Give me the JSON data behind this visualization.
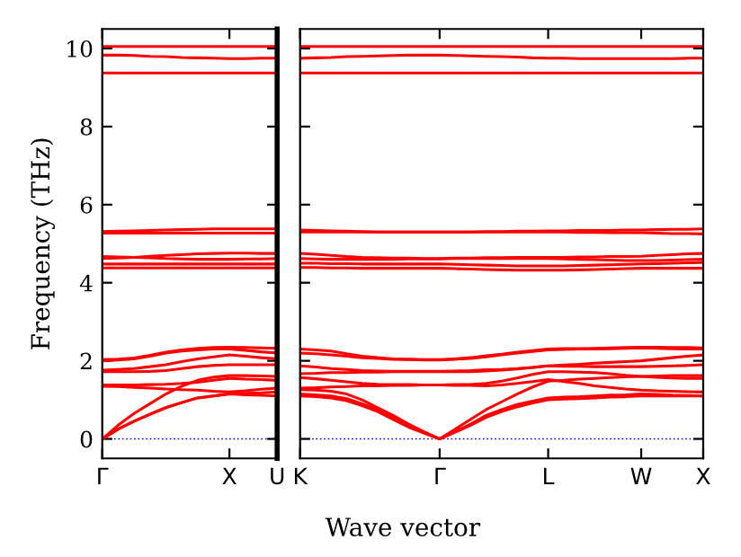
{
  "chart_data": [
    {
      "type": "line",
      "ylabel": "Frequency (THz)",
      "xlabel": "Wave vector",
      "categories": [
        "Γ",
        null,
        null,
        null,
        null,
        null,
        null,
        null,
        "X",
        null,
        null,
        "U"
      ],
      "ylim": [
        -0.5,
        10.5
      ],
      "yticks": [
        0,
        2,
        4,
        6,
        8,
        10
      ],
      "grid": false,
      "legend": false,
      "marker": "none",
      "line_style": "solid",
      "ref_lines": [
        {
          "axis": "y",
          "value": 0,
          "color": "#0000ff",
          "line_style": "dotted"
        }
      ],
      "series": [
        {
          "color": "#ff0000",
          "values": [
            0,
            0.25,
            0.45,
            0.63,
            0.8,
            0.93,
            1.05,
            1.1,
            1.15,
            1.13,
            1.12,
            1.1
          ]
        },
        {
          "color": "#ff0000",
          "values": [
            0,
            0.25,
            0.45,
            0.63,
            0.8,
            0.93,
            1.05,
            1.1,
            1.15,
            1.17,
            1.18,
            1.2
          ]
        },
        {
          "color": "#ff0000",
          "values": [
            0,
            0.35,
            0.65,
            0.9,
            1.15,
            1.35,
            1.5,
            1.58,
            1.62,
            1.62,
            1.61,
            1.6
          ]
        },
        {
          "color": "#ff0000",
          "values": [
            1.35,
            1.34,
            1.32,
            1.3,
            1.28,
            1.26,
            1.25,
            1.22,
            1.2,
            1.23,
            1.27,
            1.3
          ]
        },
        {
          "color": "#ff0000",
          "values": [
            1.38,
            1.38,
            1.38,
            1.39,
            1.4,
            1.42,
            1.45,
            1.5,
            1.55,
            1.53,
            1.52,
            1.5
          ]
        },
        {
          "color": "#ff0000",
          "values": [
            1.72,
            1.72,
            1.72,
            1.73,
            1.75,
            1.8,
            1.85,
            1.88,
            1.9,
            1.9,
            1.9,
            1.9
          ]
        },
        {
          "color": "#ff0000",
          "values": [
            1.76,
            1.78,
            1.8,
            1.85,
            1.9,
            1.98,
            2.05,
            2.1,
            2.15,
            2.12,
            2.08,
            2.05
          ]
        },
        {
          "color": "#ff0000",
          "values": [
            2.0,
            2.02,
            2.05,
            2.12,
            2.2,
            2.25,
            2.28,
            2.3,
            2.3,
            2.27,
            2.23,
            2.2
          ]
        },
        {
          "color": "#ff0000",
          "values": [
            2.03,
            2.04,
            2.07,
            2.14,
            2.22,
            2.28,
            2.32,
            2.34,
            2.35,
            2.34,
            2.33,
            2.32
          ]
        },
        {
          "color": "#ff0000",
          "values": [
            4.38,
            4.38,
            4.38,
            4.38,
            4.38,
            4.38,
            4.38,
            4.38,
            4.38,
            4.38,
            4.38,
            4.38
          ]
        },
        {
          "color": "#ff0000",
          "values": [
            4.48,
            4.48,
            4.48,
            4.48,
            4.48,
            4.48,
            4.48,
            4.48,
            4.48,
            4.48,
            4.48,
            4.48
          ]
        },
        {
          "color": "#ff0000",
          "values": [
            4.62,
            4.63,
            4.65,
            4.68,
            4.7,
            4.72,
            4.74,
            4.75,
            4.76,
            4.76,
            4.75,
            4.75
          ]
        },
        {
          "color": "#ff0000",
          "values": [
            4.67,
            4.66,
            4.65,
            4.64,
            4.62,
            4.61,
            4.6,
            4.6,
            4.6,
            4.61,
            4.61,
            4.62
          ]
        },
        {
          "color": "#ff0000",
          "values": [
            5.27,
            5.27,
            5.27,
            5.27,
            5.27,
            5.27,
            5.27,
            5.27,
            5.27,
            5.27,
            5.27,
            5.27
          ]
        },
        {
          "color": "#ff0000",
          "values": [
            5.31,
            5.32,
            5.33,
            5.34,
            5.35,
            5.36,
            5.37,
            5.38,
            5.38,
            5.38,
            5.38,
            5.38
          ]
        },
        {
          "color": "#ff0000",
          "values": [
            9.37,
            9.37,
            9.37,
            9.37,
            9.37,
            9.37,
            9.37,
            9.37,
            9.37,
            9.37,
            9.37,
            9.37
          ]
        },
        {
          "color": "#ff0000",
          "values": [
            9.83,
            9.83,
            9.82,
            9.8,
            9.79,
            9.77,
            9.76,
            9.75,
            9.74,
            9.74,
            9.75,
            9.75
          ]
        },
        {
          "color": "#ff0000",
          "values": [
            10.05,
            10.05,
            10.05,
            10.05,
            10.05,
            10.05,
            10.05,
            10.05,
            10.05,
            10.05,
            10.05,
            10.05
          ]
        }
      ]
    },
    {
      "type": "line",
      "categories": [
        "K",
        null,
        null,
        null,
        null,
        null,
        null,
        null,
        null,
        "Γ",
        null,
        null,
        null,
        null,
        null,
        null,
        "L",
        null,
        null,
        null,
        null,
        null,
        "W",
        null,
        null,
        null,
        "X"
      ],
      "ylim": [
        -0.5,
        10.5
      ],
      "yticks": [
        0,
        2,
        4,
        6,
        8,
        10
      ],
      "tick_labels": "x",
      "grid": false,
      "legend": false,
      "marker": "none",
      "line_style": "solid",
      "ref_lines": [
        {
          "axis": "y",
          "value": 0,
          "color": "#0000ff",
          "line_style": "dotted"
        }
      ],
      "series": [
        {
          "color": "#ff0000",
          "values": [
            1.1,
            1.08,
            1.05,
            0.98,
            0.85,
            0.7,
            0.5,
            0.3,
            0.15,
            0,
            0.17,
            0.35,
            0.55,
            0.7,
            0.82,
            0.92,
            1.0,
            1.02,
            1.03,
            1.05,
            1.07,
            1.08,
            1.1,
            1.1,
            1.1,
            1.1,
            1.1
          ]
        },
        {
          "color": "#ff0000",
          "values": [
            1.15,
            1.13,
            1.1,
            1.03,
            0.9,
            0.75,
            0.55,
            0.33,
            0.16,
            0,
            0.19,
            0.38,
            0.6,
            0.75,
            0.88,
            0.97,
            1.05,
            1.07,
            1.08,
            1.1,
            1.12,
            1.13,
            1.15,
            1.14,
            1.12,
            1.11,
            1.1
          ]
        },
        {
          "color": "#ff0000",
          "values": [
            1.26,
            1.25,
            1.22,
            1.15,
            1.0,
            0.8,
            0.6,
            0.38,
            0.18,
            0,
            0.25,
            0.5,
            0.75,
            0.95,
            1.15,
            1.33,
            1.48,
            1.5,
            1.53,
            1.55,
            1.57,
            1.59,
            1.6,
            1.61,
            1.62,
            1.62,
            1.62
          ]
        },
        {
          "color": "#ff0000",
          "values": [
            1.3,
            1.31,
            1.33,
            1.34,
            1.36,
            1.36,
            1.37,
            1.37,
            1.38,
            1.38,
            1.37,
            1.37,
            1.36,
            1.38,
            1.42,
            1.47,
            1.52,
            1.47,
            1.42,
            1.36,
            1.32,
            1.28,
            1.25,
            1.23,
            1.22,
            1.21,
            1.2
          ]
        },
        {
          "color": "#ff0000",
          "values": [
            1.57,
            1.54,
            1.5,
            1.46,
            1.42,
            1.4,
            1.39,
            1.39,
            1.38,
            1.38,
            1.39,
            1.39,
            1.42,
            1.48,
            1.56,
            1.65,
            1.72,
            1.72,
            1.71,
            1.7,
            1.67,
            1.63,
            1.6,
            1.58,
            1.56,
            1.55,
            1.55
          ]
        },
        {
          "color": "#ff0000",
          "values": [
            1.67,
            1.68,
            1.7,
            1.7,
            1.71,
            1.71,
            1.72,
            1.72,
            1.72,
            1.72,
            1.72,
            1.72,
            1.74,
            1.76,
            1.79,
            1.83,
            1.87,
            1.86,
            1.86,
            1.85,
            1.85,
            1.85,
            1.85,
            1.86,
            1.87,
            1.88,
            1.9
          ]
        },
        {
          "color": "#ff0000",
          "values": [
            1.87,
            1.84,
            1.8,
            1.78,
            1.75,
            1.74,
            1.73,
            1.73,
            1.73,
            1.73,
            1.74,
            1.75,
            1.77,
            1.78,
            1.8,
            1.83,
            1.87,
            1.89,
            1.91,
            1.94,
            1.96,
            1.98,
            2.0,
            2.04,
            2.08,
            2.12,
            2.15
          ]
        },
        {
          "color": "#ff0000",
          "values": [
            2.2,
            2.18,
            2.15,
            2.12,
            2.08,
            2.06,
            2.04,
            2.03,
            2.02,
            2.02,
            2.04,
            2.06,
            2.1,
            2.15,
            2.2,
            2.24,
            2.28,
            2.29,
            2.3,
            2.3,
            2.31,
            2.32,
            2.33,
            2.32,
            2.31,
            2.3,
            2.3
          ]
        },
        {
          "color": "#ff0000",
          "values": [
            2.3,
            2.28,
            2.25,
            2.18,
            2.12,
            2.08,
            2.05,
            2.04,
            2.03,
            2.03,
            2.05,
            2.08,
            2.13,
            2.17,
            2.22,
            2.26,
            2.3,
            2.31,
            2.31,
            2.32,
            2.33,
            2.34,
            2.35,
            2.35,
            2.34,
            2.34,
            2.33
          ]
        },
        {
          "color": "#ff0000",
          "values": [
            4.39,
            4.39,
            4.38,
            4.38,
            4.37,
            4.37,
            4.37,
            4.37,
            4.37,
            4.37,
            4.36,
            4.35,
            4.34,
            4.33,
            4.32,
            4.32,
            4.32,
            4.32,
            4.33,
            4.34,
            4.35,
            4.36,
            4.37,
            4.37,
            4.37,
            4.37,
            4.37
          ]
        },
        {
          "color": "#ff0000",
          "values": [
            4.5,
            4.5,
            4.49,
            4.49,
            4.48,
            4.48,
            4.48,
            4.48,
            4.48,
            4.48,
            4.47,
            4.46,
            4.45,
            4.44,
            4.43,
            4.43,
            4.43,
            4.43,
            4.44,
            4.45,
            4.46,
            4.47,
            4.48,
            4.49,
            4.5,
            4.51,
            4.52
          ]
        },
        {
          "color": "#ff0000",
          "values": [
            4.75,
            4.73,
            4.7,
            4.67,
            4.65,
            4.64,
            4.63,
            4.63,
            4.62,
            4.62,
            4.63,
            4.63,
            4.64,
            4.64,
            4.65,
            4.65,
            4.65,
            4.65,
            4.66,
            4.66,
            4.67,
            4.67,
            4.68,
            4.7,
            4.72,
            4.74,
            4.75
          ]
        },
        {
          "color": "#ff0000",
          "values": [
            4.62,
            4.61,
            4.6,
            4.6,
            4.6,
            4.6,
            4.6,
            4.61,
            4.61,
            4.61,
            4.62,
            4.62,
            4.62,
            4.62,
            4.62,
            4.62,
            4.62,
            4.61,
            4.6,
            4.59,
            4.58,
            4.57,
            4.57,
            4.57,
            4.58,
            4.59,
            4.6
          ]
        },
        {
          "color": "#ff0000",
          "values": [
            5.35,
            5.34,
            5.33,
            5.32,
            5.31,
            5.3,
            5.3,
            5.3,
            5.3,
            5.3,
            5.3,
            5.3,
            5.3,
            5.3,
            5.3,
            5.3,
            5.3,
            5.3,
            5.29,
            5.29,
            5.28,
            5.28,
            5.28,
            5.27,
            5.26,
            5.26,
            5.25
          ]
        },
        {
          "color": "#ff0000",
          "values": [
            5.3,
            5.3,
            5.3,
            5.3,
            5.3,
            5.3,
            5.3,
            5.3,
            5.3,
            5.3,
            5.3,
            5.3,
            5.31,
            5.31,
            5.32,
            5.32,
            5.33,
            5.33,
            5.34,
            5.34,
            5.34,
            5.35,
            5.35,
            5.36,
            5.37,
            5.37,
            5.38
          ]
        },
        {
          "color": "#ff0000",
          "values": [
            9.37,
            9.37,
            9.37,
            9.37,
            9.37,
            9.37,
            9.37,
            9.37,
            9.37,
            9.37,
            9.37,
            9.37,
            9.37,
            9.37,
            9.37,
            9.37,
            9.37,
            9.37,
            9.37,
            9.37,
            9.37,
            9.37,
            9.37,
            9.37,
            9.37,
            9.37,
            9.37
          ]
        },
        {
          "color": "#ff0000",
          "values": [
            9.75,
            9.76,
            9.77,
            9.79,
            9.8,
            9.81,
            9.82,
            9.83,
            9.83,
            9.83,
            9.82,
            9.81,
            9.8,
            9.79,
            9.78,
            9.76,
            9.75,
            9.75,
            9.74,
            9.74,
            9.74,
            9.74,
            9.74,
            9.74,
            9.74,
            9.75,
            9.75
          ]
        },
        {
          "color": "#ff0000",
          "values": [
            10.05,
            10.05,
            10.05,
            10.05,
            10.05,
            10.05,
            10.05,
            10.05,
            10.05,
            10.05,
            10.05,
            10.05,
            10.05,
            10.05,
            10.05,
            10.05,
            10.05,
            10.05,
            10.05,
            10.05,
            10.05,
            10.05,
            10.05,
            10.05,
            10.05,
            10.05,
            10.05
          ]
        }
      ]
    }
  ]
}
